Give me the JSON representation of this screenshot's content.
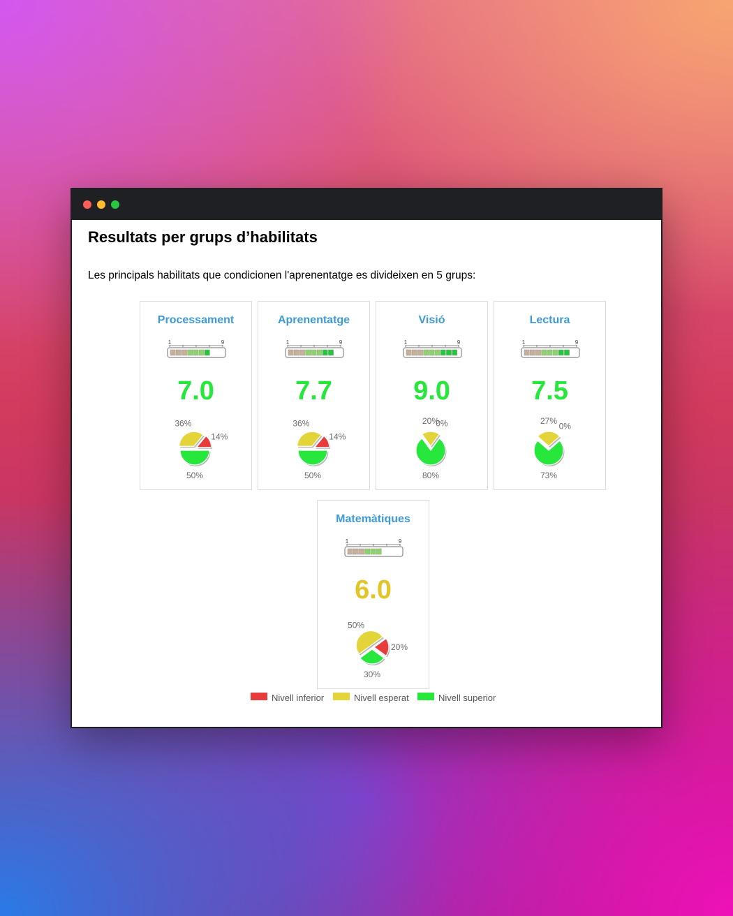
{
  "page": {
    "title": "Resultats per grups d’habilitats",
    "intro": "Les principals habilitats que condicionen l'aprenentatge es divideixen en 5 grups:"
  },
  "colors": {
    "inferior": "#e83b3b",
    "esperat": "#e3d43a",
    "superior": "#27e63c",
    "title_blue": "#3d9ad6",
    "score_green": "#27e63c",
    "score_yellow": "#e3c52a"
  },
  "scale": {
    "min_label": "1",
    "max_label": "9",
    "segments": 9
  },
  "groups": [
    {
      "name": "Processament",
      "score": "7.0",
      "score_level": "superior",
      "level_filled": 7,
      "distribution": {
        "inferior": 14,
        "esperat": 36,
        "superior": 50
      },
      "labels": {
        "inferior": "14%",
        "esperat": "36%",
        "superior": "50%"
      }
    },
    {
      "name": "Aprenentatge",
      "score": "7.7",
      "score_level": "superior",
      "level_filled": 8,
      "distribution": {
        "inferior": 14,
        "esperat": 36,
        "superior": 50
      },
      "labels": {
        "inferior": "14%",
        "esperat": "36%",
        "superior": "50%"
      }
    },
    {
      "name": "Visió",
      "score": "9.0",
      "score_level": "superior",
      "level_filled": 9,
      "distribution": {
        "inferior": 0,
        "esperat": 20,
        "superior": 80
      },
      "labels": {
        "inferior": "0%",
        "esperat": "20%",
        "superior": "80%"
      }
    },
    {
      "name": "Lectura",
      "score": "7.5",
      "score_level": "superior",
      "level_filled": 8,
      "distribution": {
        "inferior": 0,
        "esperat": 27,
        "superior": 73
      },
      "labels": {
        "inferior": "0%",
        "esperat": "27%",
        "superior": "73%"
      }
    },
    {
      "name": "Matemàtiques",
      "score": "6.0",
      "score_level": "esperat",
      "level_filled": 6,
      "distribution": {
        "inferior": 20,
        "esperat": 50,
        "superior": 30
      },
      "labels": {
        "inferior": "20%",
        "esperat": "50%",
        "superior": "30%"
      }
    }
  ],
  "legend": {
    "inferior": "Nivell inferior",
    "esperat": "Nivell esperat",
    "superior": "Nivell superior"
  }
}
